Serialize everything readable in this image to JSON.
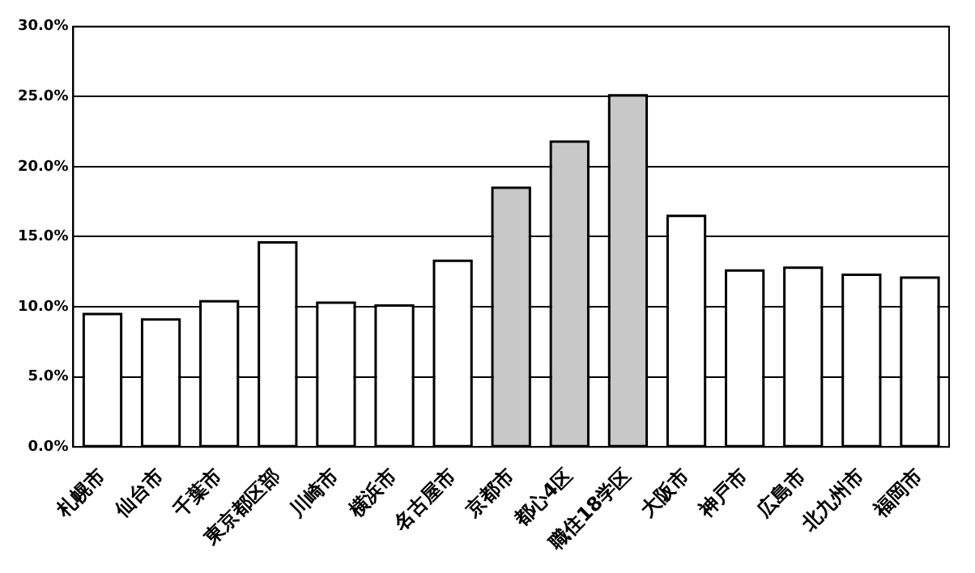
{
  "chart_data": {
    "type": "bar",
    "categories": [
      "札幌市",
      "仙台市",
      "千葉市",
      "東京都区部",
      "川崎市",
      "横浜市",
      "名古屋市",
      "京都市",
      "都心4区",
      "職住18学区",
      "大阪市",
      "神戸市",
      "広島市",
      "北九州市",
      "福岡市"
    ],
    "values": [
      9.4,
      9.0,
      10.3,
      14.5,
      10.2,
      10.0,
      13.2,
      18.4,
      21.7,
      25.0,
      16.4,
      12.5,
      12.7,
      12.2,
      12.0
    ],
    "colors": [
      "#ffffff",
      "#ffffff",
      "#ffffff",
      "#ffffff",
      "#ffffff",
      "#ffffff",
      "#ffffff",
      "#c8c8c8",
      "#c8c8c8",
      "#c8c8c8",
      "#ffffff",
      "#ffffff",
      "#ffffff",
      "#ffffff",
      "#ffffff"
    ],
    "ylim": [
      0,
      30
    ],
    "yticks": [
      {
        "value": 0,
        "label": "0.0%"
      },
      {
        "value": 5,
        "label": "5.0%"
      },
      {
        "value": 10,
        "label": "10.0%"
      },
      {
        "value": 15,
        "label": "15.0%"
      },
      {
        "value": 20,
        "label": "20.0%"
      },
      {
        "value": 25,
        "label": "25.0%"
      },
      {
        "value": 30,
        "label": "30.0%"
      }
    ],
    "grid": "y",
    "legend": false
  }
}
